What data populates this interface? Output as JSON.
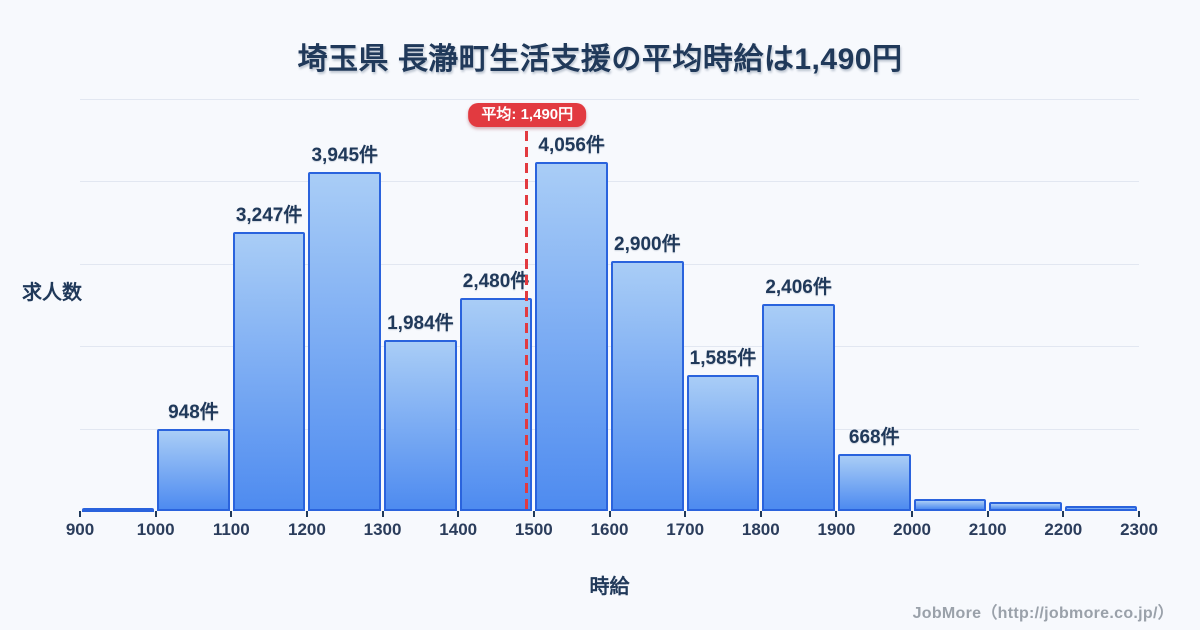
{
  "page": {
    "background": "#f7f9fd",
    "footer": "JobMore（http://jobmore.co.jp/）"
  },
  "chart_data": {
    "type": "bar",
    "title": "埼玉県 長瀞町生活支援の平均時給は1,490円",
    "xlabel": "時給",
    "ylabel": "求人数",
    "x_tick_labels": [
      "900",
      "1000",
      "1100",
      "1200",
      "1300",
      "1400",
      "1500",
      "1600",
      "1700",
      "1800",
      "1900",
      "2000",
      "2100",
      "2200",
      "2300"
    ],
    "bin_edges": [
      900,
      1000,
      1100,
      1200,
      1300,
      1400,
      1500,
      1600,
      1700,
      1800,
      1900,
      2000,
      2100,
      2200,
      2300
    ],
    "values": [
      30,
      948,
      3247,
      3945,
      1984,
      2480,
      4056,
      2900,
      1585,
      2406,
      668,
      140,
      105,
      55
    ],
    "bar_labels": [
      "",
      "948件",
      "3,247件",
      "3,945件",
      "1,984件",
      "2,480件",
      "4,056件",
      "2,900件",
      "1,585件",
      "2,406件",
      "668件",
      "",
      "",
      ""
    ],
    "average": {
      "value": 1490,
      "label": "平均: 1,490円"
    },
    "xlim": [
      900,
      2300
    ],
    "ylim": [
      0,
      4800
    ],
    "y_gridline_count": 5,
    "grid": true,
    "legend": "none",
    "colors": {
      "bar_gradient_top": "#a9cdf6",
      "bar_gradient_bottom": "#4e8bf0",
      "bar_border": "#2a63dd",
      "average_line": "#e23a40",
      "title_text": "#20395a",
      "gridline": "#e2e7f1",
      "background": "#f7f9fd",
      "footer_text": "#9aa1aa"
    }
  }
}
